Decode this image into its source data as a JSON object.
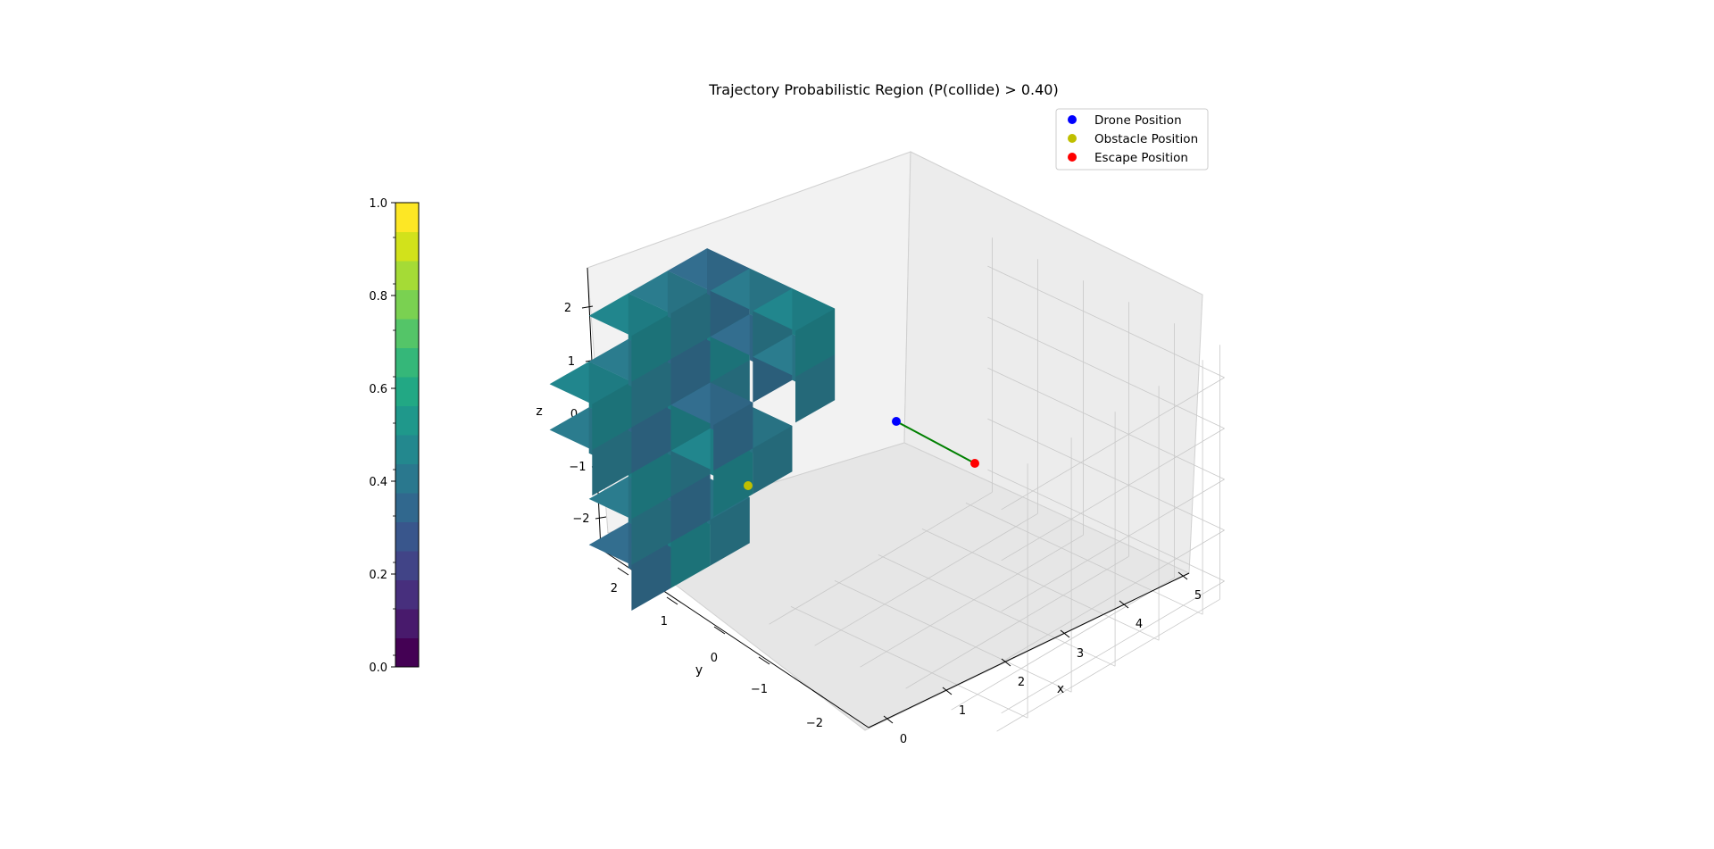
{
  "chart_data": {
    "type": "scatter",
    "projection": "3d",
    "title": "Trajectory Probabilistic Region (P(collide) > 0.40)",
    "xlabel": "x",
    "ylabel": "y",
    "zlabel": "z",
    "xlim": [
      -0.1,
      5.1
    ],
    "ylim": [
      -2.5,
      2.6
    ],
    "zlim": [
      -2.4,
      2.6
    ],
    "x_ticks": [
      "0",
      "1",
      "2",
      "3",
      "4",
      "5"
    ],
    "y_ticks": [
      "−2",
      "−1",
      "0",
      "1",
      "2"
    ],
    "z_ticks": [
      "−2",
      "−1",
      "0",
      "1",
      "2"
    ],
    "grid": true,
    "legend_position": "top-right",
    "series": [
      {
        "name": "Drone Position",
        "color": "#0000ff",
        "points": [
          [
            0.8,
            0.0,
            0.0
          ]
        ]
      },
      {
        "name": "Obstacle Position",
        "color": "#bfbf00",
        "points": [
          [
            0.0,
            1.1,
            -0.5
          ]
        ]
      },
      {
        "name": "Escape Position",
        "color": "#ff0000",
        "points": [
          [
            2.0,
            0.0,
            0.0
          ]
        ]
      }
    ],
    "trajectory": {
      "from": "Drone Position",
      "to": "Escape Position",
      "color": "#008000"
    },
    "voxels": {
      "threshold": 0.4,
      "colors": [
        "#2b7c8e",
        "#21868d",
        "#336e8f"
      ],
      "cells": [
        [
          0,
          1,
          -2,
          0.46
        ],
        [
          0,
          2,
          -2,
          0.42
        ],
        [
          0,
          1,
          -1,
          0.45
        ],
        [
          0,
          2,
          -1,
          0.44
        ],
        [
          0,
          1,
          0,
          0.47
        ],
        [
          0,
          2,
          0,
          0.43
        ],
        [
          0,
          1,
          1,
          0.46
        ],
        [
          0,
          2,
          1,
          0.44
        ],
        [
          0,
          0,
          1,
          0.43
        ],
        [
          0,
          0,
          0,
          0.41
        ],
        [
          0,
          3,
          1,
          0.42
        ],
        [
          0,
          1,
          2,
          0.45
        ],
        [
          0,
          2,
          2,
          0.44
        ],
        [
          0,
          0,
          2,
          0.42
        ],
        [
          1,
          0,
          2,
          0.41
        ],
        [
          2,
          0,
          2,
          0.41
        ],
        [
          1,
          0,
          1,
          0.42
        ],
        [
          2,
          0,
          1,
          0.4
        ],
        [
          0,
          0,
          -1,
          0.41
        ],
        [
          1,
          0,
          -1,
          0.42
        ],
        [
          1,
          1,
          -1,
          0.41
        ],
        [
          0,
          1,
          -3,
          0.46
        ],
        [
          0,
          2,
          -3,
          0.43
        ],
        [
          0,
          0,
          -3,
          0.41
        ],
        [
          1,
          1,
          0,
          0.41
        ],
        [
          0,
          3,
          0,
          0.41
        ]
      ]
    },
    "colorbar": {
      "ticks": [
        "0.0",
        "0.2",
        "0.4",
        "0.6",
        "0.8",
        "1.0"
      ],
      "min": 0.0,
      "max": 1.0,
      "colors": [
        "#440154",
        "#481a6c",
        "#472f7d",
        "#414487",
        "#39568c",
        "#31688e",
        "#2a788e",
        "#23888e",
        "#1f988b",
        "#22a884",
        "#35b779",
        "#54c568",
        "#7ad151",
        "#a5db36",
        "#d2e21b",
        "#fde725"
      ]
    }
  }
}
